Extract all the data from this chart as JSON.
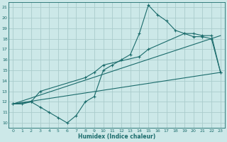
{
  "xlabel": "Humidex (Indice chaleur)",
  "xlim": [
    -0.5,
    23.5
  ],
  "ylim": [
    9.5,
    21.5
  ],
  "xticks": [
    0,
    1,
    2,
    3,
    4,
    5,
    6,
    7,
    8,
    9,
    10,
    11,
    12,
    13,
    14,
    15,
    16,
    17,
    18,
    19,
    20,
    21,
    22,
    23
  ],
  "yticks": [
    10,
    11,
    12,
    13,
    14,
    15,
    16,
    17,
    18,
    19,
    20,
    21
  ],
  "bg_color": "#cce8e8",
  "grid_color": "#aacccc",
  "line_color": "#1a6b6b",
  "line1_x": [
    0,
    1,
    2,
    3,
    4,
    5,
    6,
    7,
    8,
    9,
    10,
    11,
    12,
    13,
    14,
    15,
    16,
    17,
    18,
    19,
    20,
    21,
    22,
    23
  ],
  "line1_y": [
    11.8,
    11.8,
    12.0,
    11.5,
    11.0,
    10.5,
    10.0,
    10.7,
    12.0,
    12.5,
    15.0,
    15.5,
    16.0,
    16.5,
    18.5,
    21.2,
    20.3,
    19.7,
    18.8,
    18.5,
    18.2,
    18.2,
    18.0,
    14.8
  ],
  "line2_x": [
    0,
    2,
    3,
    8,
    9,
    10,
    14,
    15,
    19,
    20,
    21,
    22,
    23
  ],
  "line2_y": [
    11.8,
    12.0,
    13.0,
    14.3,
    14.8,
    15.5,
    16.3,
    17.0,
    18.5,
    18.5,
    18.3,
    18.3,
    14.8
  ],
  "line3_x": [
    0,
    23
  ],
  "line3_y": [
    11.8,
    14.8
  ],
  "line4_x": [
    0,
    23
  ],
  "line4_y": [
    11.8,
    18.3
  ]
}
